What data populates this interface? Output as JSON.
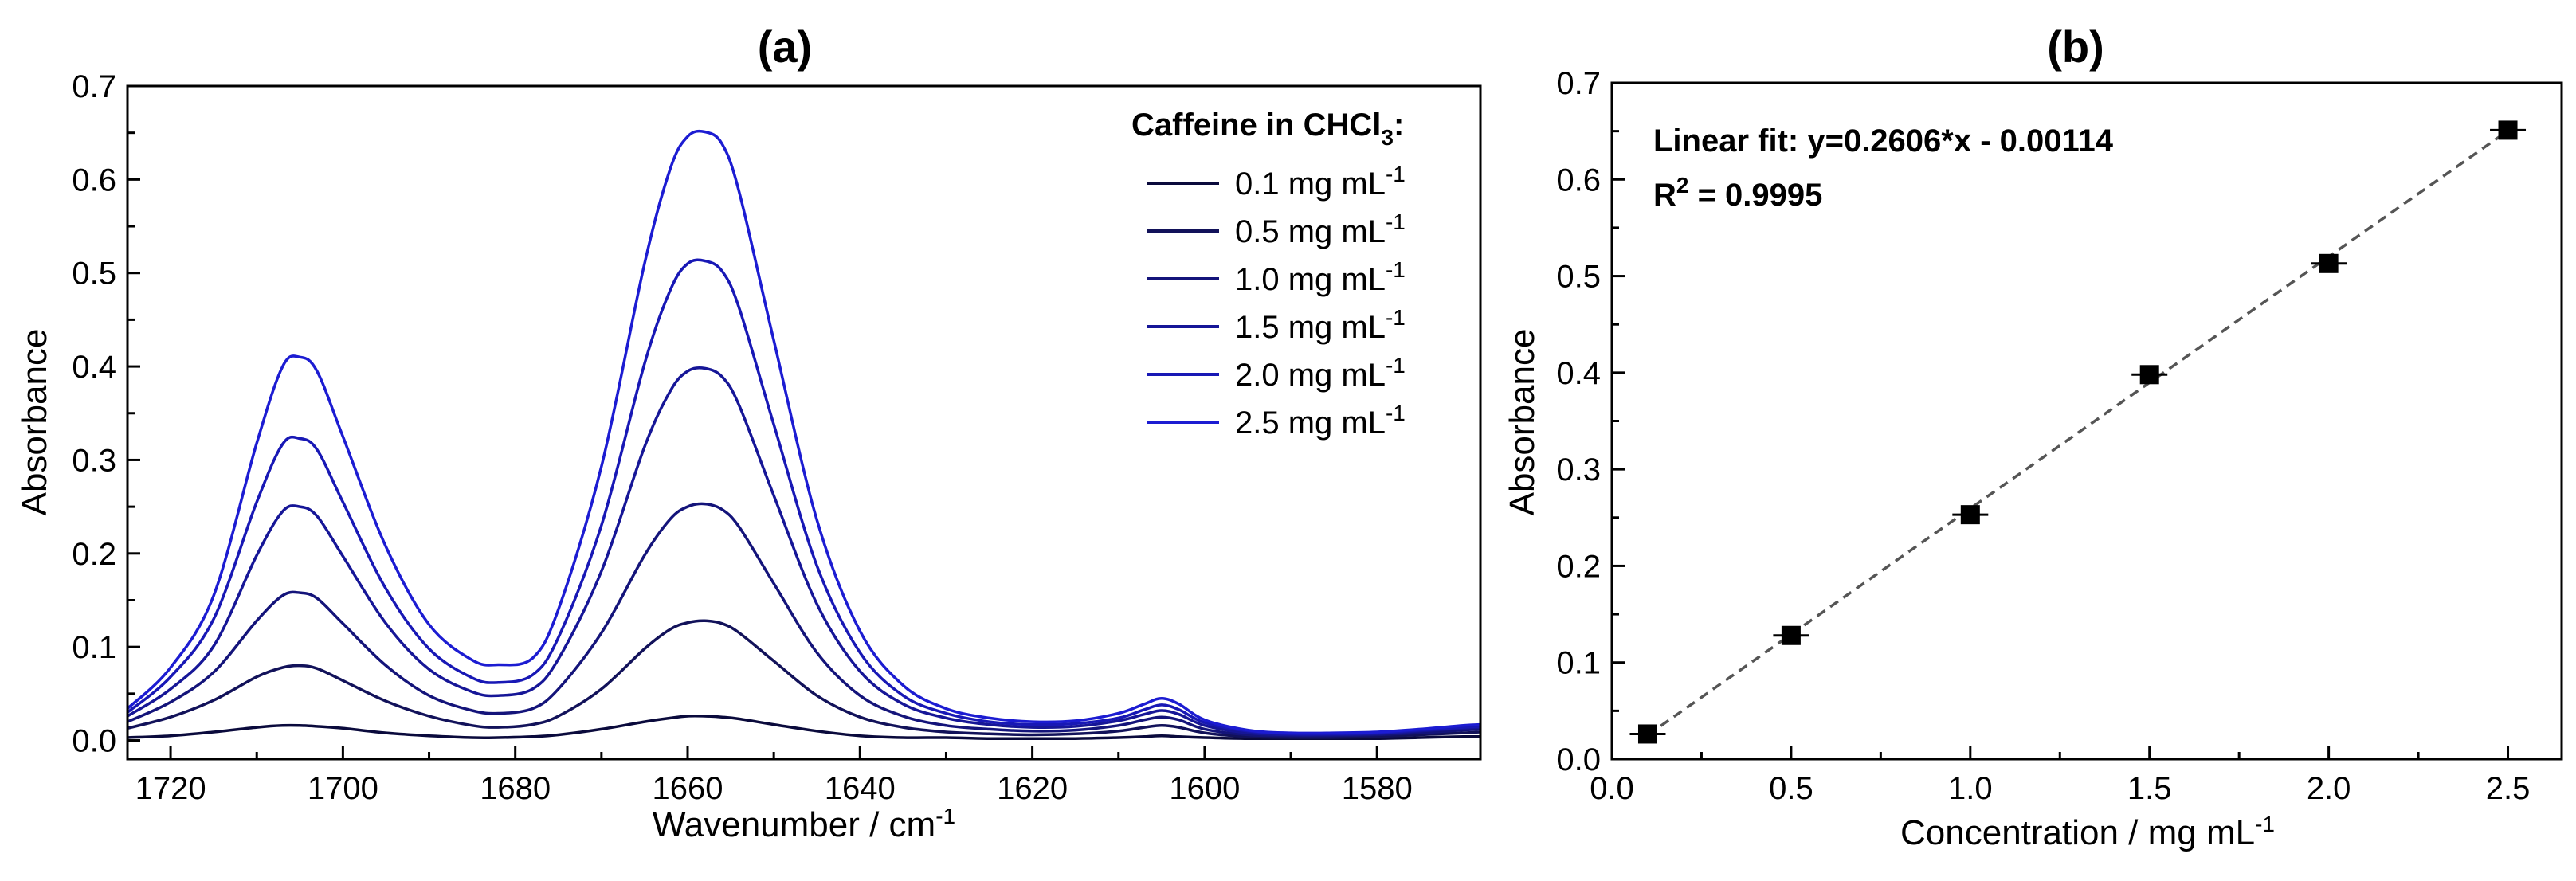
{
  "chart_data": [
    {
      "type": "line",
      "title": "(a)",
      "xlabel": "Wavenumber / cm",
      "xlabel_sup": "-1",
      "ylabel": "Absorbance",
      "xlim": [
        1725,
        1568
      ],
      "ylim": [
        -0.02,
        0.7
      ],
      "x_reversed": true,
      "xticks": [
        1720,
        1700,
        1680,
        1660,
        1640,
        1620,
        1600,
        1580
      ],
      "xtick_labels": [
        "1720",
        "1700",
        "1680",
        "1660",
        "1640",
        "1620",
        "1600",
        "1580"
      ],
      "yticks": [
        0.0,
        0.1,
        0.2,
        0.3,
        0.4,
        0.5,
        0.6,
        0.7
      ],
      "ytick_labels": [
        "0.0",
        "0.1",
        "0.2",
        "0.3",
        "0.4",
        "0.5",
        "0.6",
        "0.7"
      ],
      "legend": {
        "title_main": "Caffeine in CHCl",
        "title_sub": "3",
        "title_tail": ":",
        "placement": "top-right"
      },
      "x": [
        1725,
        1720,
        1715,
        1710,
        1707,
        1705,
        1703,
        1700,
        1695,
        1690,
        1685,
        1682,
        1678,
        1675,
        1670,
        1665,
        1662,
        1660,
        1658,
        1656,
        1654,
        1650,
        1645,
        1640,
        1635,
        1630,
        1625,
        1620,
        1615,
        1610,
        1607,
        1605,
        1603,
        1600,
        1595,
        1590,
        1585,
        1580,
        1575,
        1570,
        1568
      ],
      "series": [
        {
          "name": "0.1 mg mL",
          "name_sup": "-1",
          "color": "#0a0a3c",
          "values": [
            0.003,
            0.005,
            0.009,
            0.014,
            0.016,
            0.016,
            0.015,
            0.013,
            0.008,
            0.005,
            0.003,
            0.003,
            0.004,
            0.006,
            0.012,
            0.02,
            0.024,
            0.026,
            0.026,
            0.025,
            0.023,
            0.017,
            0.01,
            0.005,
            0.003,
            0.003,
            0.002,
            0.002,
            0.002,
            0.003,
            0.004,
            0.005,
            0.004,
            0.003,
            0.002,
            0.002,
            0.002,
            0.002,
            0.003,
            0.004,
            0.004
          ]
        },
        {
          "name": "0.5 mg mL",
          "name_sup": "-1",
          "color": "#12125a",
          "values": [
            0.013,
            0.025,
            0.043,
            0.068,
            0.078,
            0.08,
            0.077,
            0.064,
            0.042,
            0.026,
            0.016,
            0.014,
            0.017,
            0.026,
            0.055,
            0.098,
            0.119,
            0.126,
            0.128,
            0.125,
            0.115,
            0.085,
            0.048,
            0.025,
            0.014,
            0.009,
            0.007,
            0.006,
            0.007,
            0.01,
            0.014,
            0.016,
            0.014,
            0.008,
            0.004,
            0.003,
            0.003,
            0.004,
            0.006,
            0.008,
            0.009
          ]
        },
        {
          "name": "1.0 mg mL",
          "name_sup": "-1",
          "color": "#14147a",
          "values": [
            0.02,
            0.041,
            0.073,
            0.128,
            0.155,
            0.158,
            0.152,
            0.125,
            0.08,
            0.048,
            0.032,
            0.029,
            0.034,
            0.055,
            0.115,
            0.198,
            0.237,
            0.25,
            0.253,
            0.247,
            0.228,
            0.168,
            0.094,
            0.048,
            0.026,
            0.016,
            0.012,
            0.01,
            0.011,
            0.016,
            0.022,
            0.025,
            0.022,
            0.012,
            0.006,
            0.005,
            0.005,
            0.006,
            0.008,
            0.011,
            0.012
          ]
        },
        {
          "name": "1.5 mg mL",
          "name_sup": "-1",
          "color": "#161697",
          "values": [
            0.026,
            0.055,
            0.101,
            0.198,
            0.245,
            0.25,
            0.24,
            0.197,
            0.125,
            0.076,
            0.052,
            0.048,
            0.055,
            0.087,
            0.181,
            0.314,
            0.374,
            0.395,
            0.398,
            0.389,
            0.358,
            0.262,
            0.146,
            0.074,
            0.039,
            0.024,
            0.017,
            0.014,
            0.015,
            0.021,
            0.028,
            0.032,
            0.028,
            0.016,
            0.008,
            0.006,
            0.006,
            0.007,
            0.01,
            0.013,
            0.014
          ]
        },
        {
          "name": "2.0 mg mL",
          "name_sup": "-1",
          "color": "#1818b5",
          "values": [
            0.03,
            0.068,
            0.13,
            0.255,
            0.317,
            0.323,
            0.311,
            0.255,
            0.162,
            0.098,
            0.067,
            0.062,
            0.07,
            0.11,
            0.23,
            0.403,
            0.482,
            0.51,
            0.513,
            0.502,
            0.462,
            0.338,
            0.187,
            0.094,
            0.048,
            0.029,
            0.02,
            0.017,
            0.018,
            0.024,
            0.033,
            0.038,
            0.033,
            0.019,
            0.01,
            0.007,
            0.007,
            0.008,
            0.011,
            0.014,
            0.015
          ]
        },
        {
          "name": "2.5 mg mL",
          "name_sup": "-1",
          "color": "#1c1cd2",
          "values": [
            0.034,
            0.078,
            0.155,
            0.318,
            0.4,
            0.41,
            0.395,
            0.325,
            0.207,
            0.124,
            0.086,
            0.081,
            0.088,
            0.14,
            0.293,
            0.51,
            0.612,
            0.646,
            0.651,
            0.638,
            0.586,
            0.428,
            0.236,
            0.117,
            0.059,
            0.034,
            0.024,
            0.02,
            0.021,
            0.029,
            0.039,
            0.045,
            0.039,
            0.022,
            0.011,
            0.008,
            0.008,
            0.009,
            0.012,
            0.016,
            0.017
          ]
        }
      ]
    },
    {
      "type": "scatter",
      "title": "(b)",
      "xlabel": "Concentration / mg mL",
      "xlabel_sup": "-1",
      "ylabel": "Absorbance",
      "xlim": [
        0.0,
        2.65
      ],
      "ylim": [
        0.0,
        0.7
      ],
      "xticks": [
        0.0,
        0.5,
        1.0,
        1.5,
        2.0,
        2.5
      ],
      "xtick_labels": [
        "0.0",
        "0.5",
        "1.0",
        "1.5",
        "2.0",
        "2.5"
      ],
      "yticks": [
        0.0,
        0.1,
        0.2,
        0.3,
        0.4,
        0.5,
        0.6,
        0.7
      ],
      "ytick_labels": [
        "0.0",
        "0.1",
        "0.2",
        "0.3",
        "0.4",
        "0.5",
        "0.6",
        "0.7"
      ],
      "points": {
        "x": [
          0.1,
          0.5,
          1.0,
          1.5,
          2.0,
          2.5
        ],
        "y": [
          0.026,
          0.128,
          0.253,
          0.398,
          0.513,
          0.651
        ],
        "xerr": 0.1,
        "color": "#000000"
      },
      "fit": {
        "slope": 0.2606,
        "intercept": -0.00114,
        "label": "Linear fit: y=0.2606*x - 0.00114",
        "r2_prefix": "R",
        "r2_sup": "2",
        "r2_tail": " = 0.9995",
        "style": "dashed",
        "color": "#555555"
      }
    }
  ]
}
